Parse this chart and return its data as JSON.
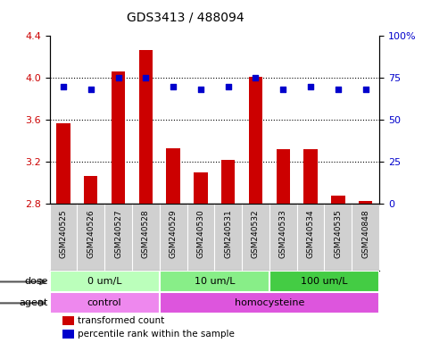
{
  "title": "GDS3413 / 488094",
  "samples": [
    "GSM240525",
    "GSM240526",
    "GSM240527",
    "GSM240528",
    "GSM240529",
    "GSM240530",
    "GSM240531",
    "GSM240532",
    "GSM240533",
    "GSM240534",
    "GSM240535",
    "GSM240848"
  ],
  "bar_values": [
    3.57,
    3.07,
    4.06,
    4.27,
    3.33,
    3.1,
    3.22,
    4.01,
    3.32,
    3.32,
    2.88,
    2.83
  ],
  "dot_values": [
    70,
    68,
    75,
    75,
    70,
    68,
    70,
    75,
    68,
    70,
    68,
    68
  ],
  "bar_color": "#cc0000",
  "dot_color": "#0000cc",
  "ylim_left": [
    2.8,
    4.4
  ],
  "ylim_right": [
    0,
    100
  ],
  "yticks_left": [
    2.8,
    3.2,
    3.6,
    4.0,
    4.4
  ],
  "yticks_right": [
    0,
    25,
    50,
    75,
    100
  ],
  "ytick_labels_right": [
    "0",
    "25",
    "50",
    "75",
    "100%"
  ],
  "hlines": [
    3.2,
    3.6,
    4.0
  ],
  "dose_groups": [
    {
      "label": "0 um/L",
      "start": 0,
      "end": 4,
      "color": "#bbffbb"
    },
    {
      "label": "10 um/L",
      "start": 4,
      "end": 8,
      "color": "#88ee88"
    },
    {
      "label": "100 um/L",
      "start": 8,
      "end": 12,
      "color": "#44cc44"
    }
  ],
  "agent_groups": [
    {
      "label": "control",
      "start": 0,
      "end": 4,
      "color": "#ee88ee"
    },
    {
      "label": "homocysteine",
      "start": 4,
      "end": 12,
      "color": "#dd55dd"
    }
  ],
  "dose_label": "dose",
  "agent_label": "agent",
  "legend_bar": "transformed count",
  "legend_dot": "percentile rank within the sample",
  "bar_color_legend": "#cc0000",
  "dot_color_legend": "#0000cc",
  "bar_width": 0.5,
  "label_area_bg": "#d0d0d0",
  "plot_bg": "#ffffff",
  "arrow_color": "#555555"
}
